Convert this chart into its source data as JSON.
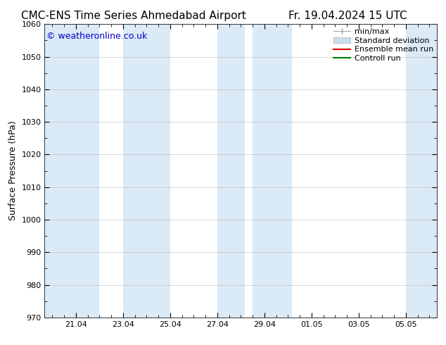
{
  "title_left": "CMC-ENS Time Series Ahmedabad Airport",
  "title_right": "Fr. 19.04.2024 15 UTC",
  "ylabel": "Surface Pressure (hPa)",
  "ylim": [
    970,
    1060
  ],
  "yticks": [
    970,
    980,
    990,
    1000,
    1010,
    1020,
    1030,
    1040,
    1050,
    1060
  ],
  "watermark": "© weatheronline.co.uk",
  "watermark_color": "#0000cc",
  "bg_color": "#ffffff",
  "plot_bg_color": "#ffffff",
  "shaded_band_color": "#daeaf7",
  "shaded_band_alpha": 1.0,
  "shaded_columns": [
    {
      "x_start": 19.17,
      "x_end": 21.5
    },
    {
      "x_start": 22.5,
      "x_end": 24.5
    },
    {
      "x_start": 26.5,
      "x_end": 27.67
    },
    {
      "x_start": 28.0,
      "x_end": 29.67
    },
    {
      "x_start": 34.5,
      "x_end": 35.83
    }
  ],
  "x_tick_labels": [
    "21.04",
    "23.04",
    "25.04",
    "27.04",
    "29.04",
    "01.05",
    "03.05",
    "05.05"
  ],
  "x_tick_positions": [
    20.5,
    22.5,
    24.5,
    26.5,
    28.5,
    30.5,
    32.5,
    34.5
  ],
  "xlim_start": 19.17,
  "xlim_end": 35.83,
  "title_fontsize": 11,
  "label_fontsize": 9,
  "tick_fontsize": 8,
  "watermark_fontsize": 9,
  "legend_fontsize": 8
}
